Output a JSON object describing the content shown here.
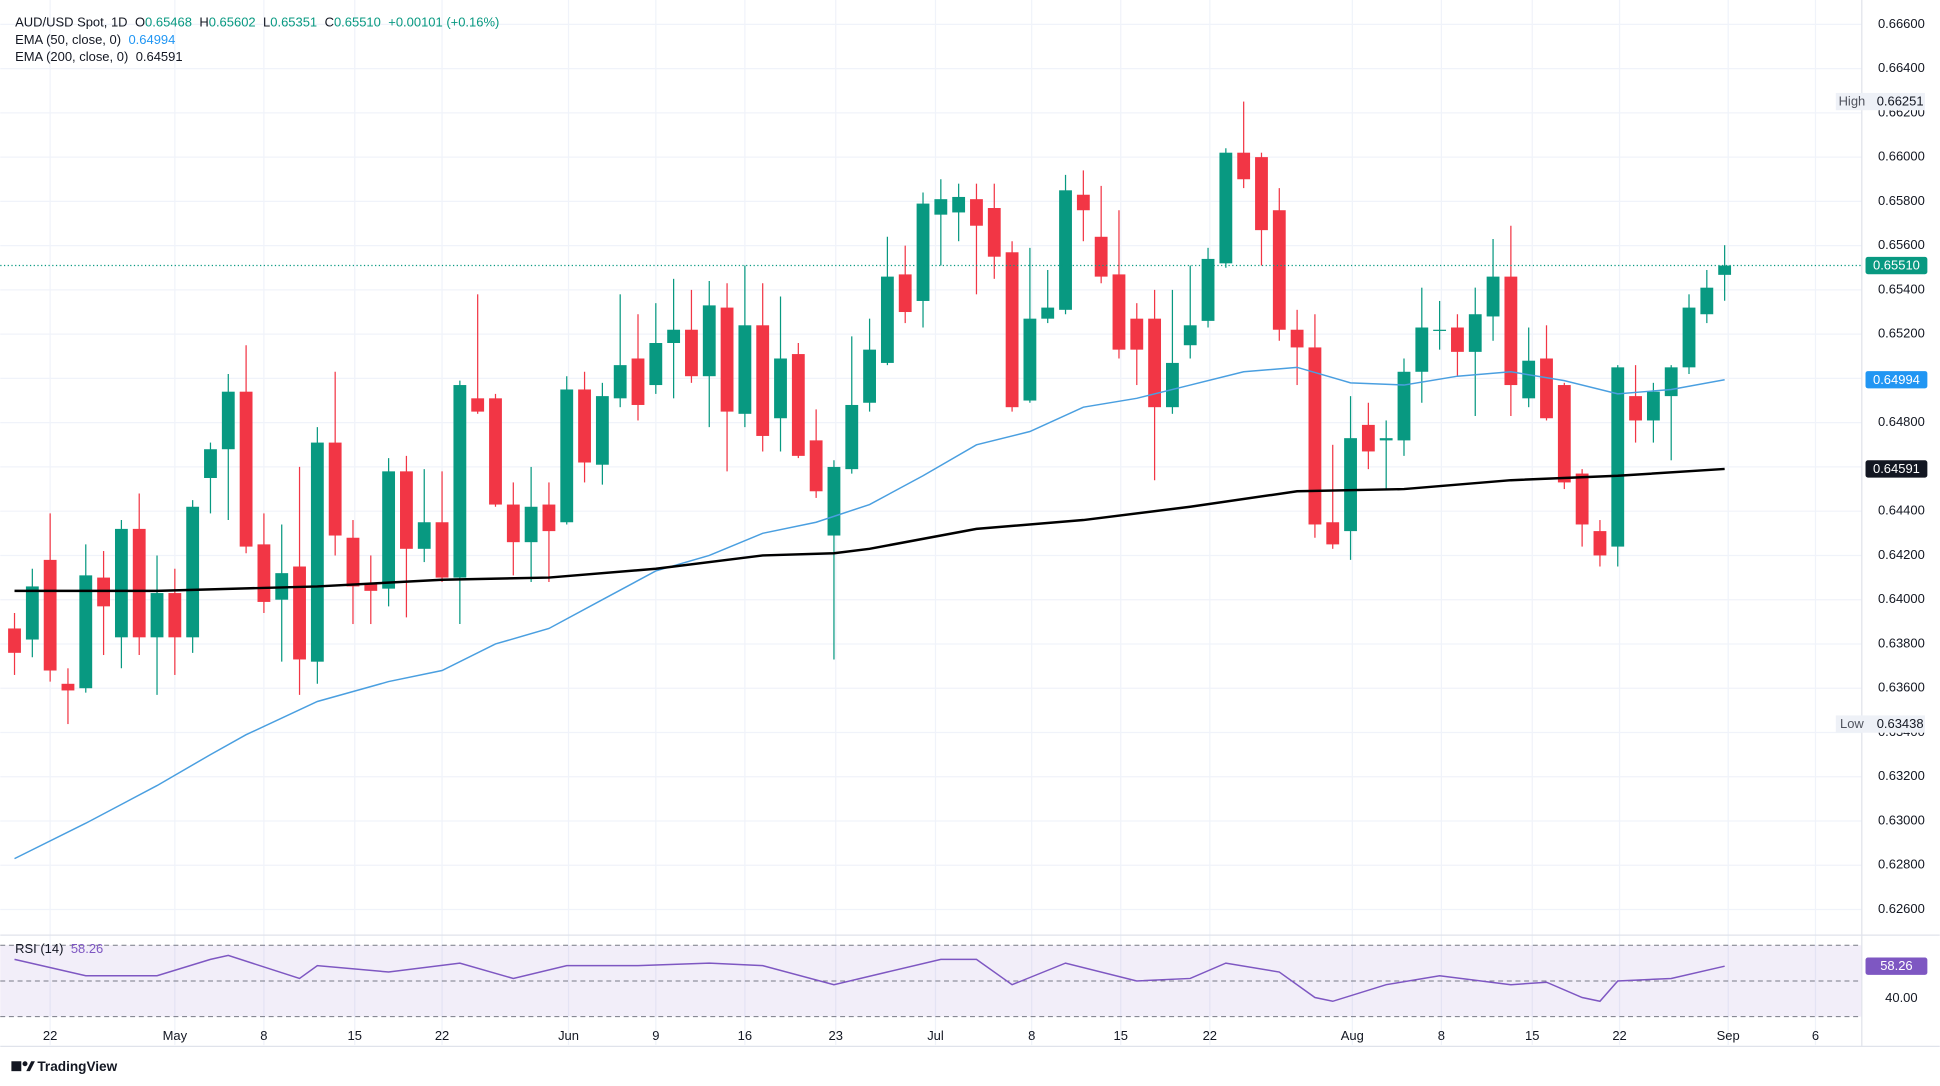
{
  "chart_data": [
    {
      "type": "candlestick",
      "title": "AUD/USD Spot, 1D",
      "ohlc_legend": {
        "labels": [
          "O",
          "H",
          "L",
          "C"
        ],
        "values": [
          "0.65468",
          "0.65602",
          "0.65351",
          "0.65510"
        ],
        "change": "+0.00101 (+0.16%)"
      },
      "xlim": [
        -0.8,
        103.7
      ],
      "xticks": [
        {
          "value": 2.0,
          "label": "22"
        },
        {
          "value": 9.0,
          "label": "May"
        },
        {
          "value": 14.0,
          "label": "8"
        },
        {
          "value": 19.1,
          "label": "15"
        },
        {
          "value": 24.0,
          "label": "22"
        },
        {
          "value": 31.1,
          "label": "Jun"
        },
        {
          "value": 36.0,
          "label": "9"
        },
        {
          "value": 41.0,
          "label": "16"
        },
        {
          "value": 46.1,
          "label": "23"
        },
        {
          "value": 51.7,
          "label": "Jul"
        },
        {
          "value": 57.1,
          "label": "8"
        },
        {
          "value": 62.1,
          "label": "15"
        },
        {
          "value": 67.1,
          "label": "22"
        },
        {
          "value": 75.1,
          "label": "Aug"
        },
        {
          "value": 80.1,
          "label": "8"
        },
        {
          "value": 85.2,
          "label": "15"
        },
        {
          "value": 90.1,
          "label": "22"
        },
        {
          "value": 96.2,
          "label": "Sep"
        },
        {
          "value": 101.1,
          "label": "6"
        }
      ],
      "ylim": [
        0.6249,
        0.6671
      ],
      "yticks": [
        {
          "value": 0.626,
          "label": "0.62600"
        },
        {
          "value": 0.628,
          "label": "0.62800"
        },
        {
          "value": 0.63,
          "label": "0.63000"
        },
        {
          "value": 0.632,
          "label": "0.63200"
        },
        {
          "value": 0.634,
          "label": "0.63400"
        },
        {
          "value": 0.636,
          "label": "0.63600"
        },
        {
          "value": 0.638,
          "label": "0.63800"
        },
        {
          "value": 0.64,
          "label": "0.64000"
        },
        {
          "value": 0.642,
          "label": "0.64200"
        },
        {
          "value": 0.644,
          "label": "0.64400"
        },
        {
          "value": 0.646,
          "label": "0.64600"
        },
        {
          "value": 0.648,
          "label": "0.64800"
        },
        {
          "value": 0.65,
          "label": "0.65000"
        },
        {
          "value": 0.652,
          "label": "0.65200"
        },
        {
          "value": 0.654,
          "label": "0.65400"
        },
        {
          "value": 0.656,
          "label": "0.65600"
        },
        {
          "value": 0.658,
          "label": "0.65800"
        },
        {
          "value": 0.66,
          "label": "0.66000"
        },
        {
          "value": 0.662,
          "label": "0.66200"
        },
        {
          "value": 0.664,
          "label": "0.66400"
        },
        {
          "value": 0.666,
          "label": "0.66600"
        }
      ],
      "grid": true,
      "candles": {
        "up_color": "#089981",
        "down_color": "#f23645",
        "open": [
          0.6387,
          0.6382,
          0.6418,
          0.6362,
          0.636,
          0.641,
          0.6383,
          0.6432,
          0.6383,
          0.6403,
          0.6383,
          0.6455,
          0.6468,
          0.6494,
          0.6425,
          0.64,
          0.6415,
          0.6372,
          0.6471,
          0.6428,
          0.6407,
          0.6405,
          0.6458,
          0.6423,
          0.6435,
          0.641,
          0.6491,
          0.6491,
          0.6443,
          0.6426,
          0.6443,
          0.6435,
          0.6495,
          0.6461,
          0.6491,
          0.6509,
          0.6497,
          0.6516,
          0.6522,
          0.6501,
          0.6532,
          0.6484,
          0.6524,
          0.6482,
          0.6511,
          0.6472,
          0.6429,
          0.6459,
          0.6489,
          0.6507,
          0.6547,
          0.6535,
          0.6574,
          0.6575,
          0.6581,
          0.6577,
          0.6557,
          0.649,
          0.6527,
          0.6531,
          0.6583,
          0.6564,
          0.6547,
          0.6527,
          0.6527,
          0.6487,
          0.6515,
          0.6526,
          0.6552,
          0.6602,
          0.66,
          0.6576,
          0.6522,
          0.6514,
          0.6435,
          0.6431,
          0.6479,
          0.6472,
          0.6472,
          0.6503,
          0.6522,
          0.6523,
          0.6512,
          0.6528,
          0.6546,
          0.6491,
          0.6509,
          0.6497,
          0.6457,
          0.6431,
          0.6424,
          0.6492,
          0.6481,
          0.6492,
          0.6505,
          0.6529,
          0.65468
        ],
        "high": [
          0.6394,
          0.6414,
          0.6439,
          0.6369,
          0.6425,
          0.6422,
          0.6436,
          0.6448,
          0.642,
          0.6414,
          0.6445,
          0.6471,
          0.6502,
          0.6515,
          0.6439,
          0.6434,
          0.646,
          0.6478,
          0.6503,
          0.6436,
          0.642,
          0.6464,
          0.6465,
          0.6459,
          0.6458,
          0.6499,
          0.6538,
          0.6493,
          0.6453,
          0.646,
          0.6453,
          0.6501,
          0.6503,
          0.6498,
          0.6538,
          0.6529,
          0.6534,
          0.6545,
          0.654,
          0.6544,
          0.6543,
          0.6551,
          0.6543,
          0.6537,
          0.6516,
          0.6486,
          0.6463,
          0.6519,
          0.6527,
          0.6564,
          0.656,
          0.6584,
          0.659,
          0.6588,
          0.6588,
          0.6588,
          0.6562,
          0.6559,
          0.6549,
          0.6592,
          0.6594,
          0.6587,
          0.6576,
          0.6534,
          0.654,
          0.654,
          0.6551,
          0.6559,
          0.6604,
          0.66251,
          0.6602,
          0.6586,
          0.6531,
          0.6529,
          0.647,
          0.6492,
          0.6489,
          0.6481,
          0.6509,
          0.6541,
          0.6535,
          0.6529,
          0.6541,
          0.6563,
          0.6569,
          0.6523,
          0.6524,
          0.6498,
          0.6459,
          0.6436,
          0.6506,
          0.6506,
          0.6498,
          0.6506,
          0.6538,
          0.6549,
          0.65602
        ],
        "low": [
          0.6366,
          0.6374,
          0.6363,
          0.63438,
          0.6358,
          0.6375,
          0.6369,
          0.6375,
          0.6357,
          0.6366,
          0.6376,
          0.6439,
          0.6436,
          0.6421,
          0.6394,
          0.6372,
          0.6357,
          0.6362,
          0.642,
          0.6389,
          0.6389,
          0.6397,
          0.6392,
          0.6417,
          0.6408,
          0.6389,
          0.6484,
          0.6442,
          0.6411,
          0.6408,
          0.6408,
          0.6434,
          0.6453,
          0.6452,
          0.6487,
          0.6481,
          0.6493,
          0.6491,
          0.6498,
          0.6478,
          0.6458,
          0.6478,
          0.6467,
          0.6467,
          0.6464,
          0.6446,
          0.6373,
          0.6457,
          0.6485,
          0.6506,
          0.6525,
          0.6523,
          0.6551,
          0.6562,
          0.6538,
          0.6545,
          0.6485,
          0.6489,
          0.6525,
          0.6529,
          0.6562,
          0.6543,
          0.6509,
          0.6497,
          0.6454,
          0.6484,
          0.6509,
          0.6523,
          0.655,
          0.6586,
          0.6551,
          0.6517,
          0.6497,
          0.6428,
          0.6423,
          0.6418,
          0.6459,
          0.645,
          0.6465,
          0.6489,
          0.6513,
          0.6501,
          0.6483,
          0.6517,
          0.6483,
          0.6487,
          0.6481,
          0.645,
          0.6424,
          0.6415,
          0.6415,
          0.6471,
          0.6471,
          0.6463,
          0.6502,
          0.6525,
          0.65351
        ],
        "close": [
          0.6376,
          0.6406,
          0.6368,
          0.6359,
          0.6411,
          0.6397,
          0.6432,
          0.6383,
          0.6403,
          0.6383,
          0.6442,
          0.6468,
          0.6494,
          0.6424,
          0.6399,
          0.6412,
          0.6373,
          0.6471,
          0.6429,
          0.6406,
          0.6404,
          0.6458,
          0.6423,
          0.6435,
          0.641,
          0.6497,
          0.6485,
          0.6443,
          0.6426,
          0.6442,
          0.6431,
          0.6495,
          0.6462,
          0.6492,
          0.6506,
          0.6488,
          0.6516,
          0.6522,
          0.6501,
          0.6533,
          0.6485,
          0.6524,
          0.6474,
          0.6509,
          0.6465,
          0.6449,
          0.646,
          0.6488,
          0.6513,
          0.6546,
          0.653,
          0.6579,
          0.6581,
          0.6582,
          0.6569,
          0.6555,
          0.6487,
          0.6527,
          0.6532,
          0.6585,
          0.6576,
          0.6546,
          0.6513,
          0.6513,
          0.6487,
          0.6507,
          0.6524,
          0.6554,
          0.6602,
          0.659,
          0.6567,
          0.6522,
          0.6514,
          0.6434,
          0.6425,
          0.6473,
          0.6467,
          0.6473,
          0.6503,
          0.6523,
          0.6522,
          0.6512,
          0.6529,
          0.6546,
          0.6497,
          0.6508,
          0.6482,
          0.6453,
          0.6434,
          0.642,
          0.6505,
          0.6481,
          0.6494,
          0.6505,
          0.6532,
          0.6541,
          0.6551
        ]
      },
      "series": [
        {
          "name": "EMA (50, close, 0)",
          "legend_value": 0.64994,
          "color": "#4a9fe0",
          "x": [
            0,
            4,
            8,
            11,
            13,
            17,
            21,
            24,
            27,
            30,
            33,
            36,
            39,
            42,
            45,
            48,
            51,
            54,
            57,
            60,
            63,
            66,
            69,
            72,
            75,
            78,
            81,
            84,
            87,
            90,
            93,
            96
          ],
          "values": [
            0.6283,
            0.6299,
            0.6316,
            0.633,
            0.6339,
            0.6354,
            0.6363,
            0.6368,
            0.638,
            0.6387,
            0.64,
            0.6413,
            0.642,
            0.643,
            0.6435,
            0.6443,
            0.6456,
            0.647,
            0.6476,
            0.6487,
            0.6491,
            0.6497,
            0.6503,
            0.6505,
            0.6498,
            0.6497,
            0.6501,
            0.6503,
            0.6499,
            0.6493,
            0.6495,
            0.64994
          ]
        },
        {
          "name": "EMA (200, close, 0)",
          "legend_value": 0.64591,
          "color": "#000000",
          "x": [
            0,
            8,
            17,
            24,
            30,
            36,
            42,
            46,
            48,
            54,
            60,
            66,
            72,
            78,
            84,
            90,
            96
          ],
          "values": [
            0.6404,
            0.6404,
            0.6406,
            0.6409,
            0.641,
            0.6414,
            0.642,
            0.6421,
            0.6423,
            0.6432,
            0.6436,
            0.6442,
            0.6449,
            0.645,
            0.6454,
            0.6456,
            0.64591
          ]
        }
      ],
      "badges": [
        {
          "value": 0.6551,
          "label": "0.65510",
          "color": "#089981",
          "line": true
        },
        {
          "value": 0.64994,
          "color": "#2196f3"
        },
        {
          "value": 0.64591,
          "color": "#131722"
        }
      ],
      "extremes": [
        {
          "name": "High",
          "value": 0.66251
        },
        {
          "name": "Low",
          "value": 0.63438
        }
      ]
    },
    {
      "type": "line",
      "title": "RSI (14)",
      "legend_value": 58.26,
      "ylim": [
        14,
        75
      ],
      "yticks": [
        {
          "value": 40,
          "label": "40.00"
        }
      ],
      "levels": [
        70,
        50,
        30
      ],
      "series": [
        {
          "color": "#7e57c2",
          "x": [
            0,
            4,
            8,
            11,
            12,
            16,
            17,
            21,
            25,
            28,
            31,
            35,
            39,
            42,
            46,
            49,
            52,
            54,
            56,
            59,
            63,
            66,
            68,
            71,
            73,
            74,
            77,
            80,
            84,
            86,
            88,
            89,
            90,
            93,
            96
          ],
          "values": [
            62.1,
            52.9,
            52.9,
            62.1,
            64.3,
            51.4,
            58.6,
            55,
            60,
            51.4,
            58.6,
            58.6,
            60,
            58.6,
            47.9,
            55,
            62.1,
            62.1,
            47.9,
            60,
            50,
            51.4,
            60,
            55,
            40.7,
            38.6,
            47.9,
            52.9,
            47.9,
            49.3,
            40.7,
            38.6,
            50,
            51.4,
            58.26
          ]
        }
      ],
      "badges": [
        {
          "value": 58.26,
          "color": "#7e57c2"
        }
      ]
    }
  ],
  "footer": {
    "brand": "TradingView"
  }
}
